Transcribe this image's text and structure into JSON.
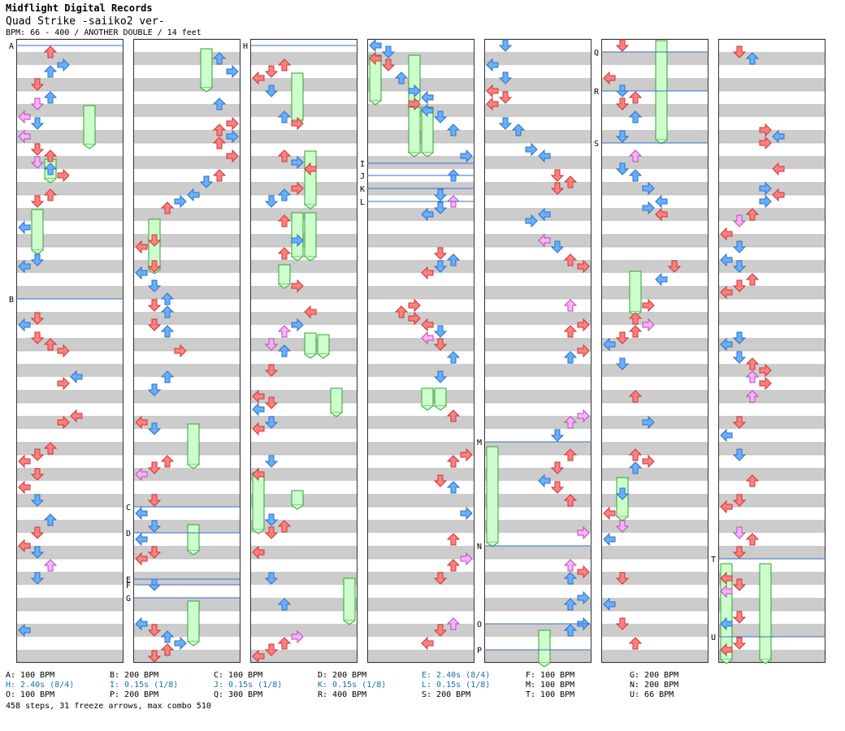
{
  "header": {
    "publisher": "Midflight Digital Records",
    "song_title": "Quad Strike -saiiko2 ver-",
    "info": "BPM: 66 - 400 / ANOTHER DOUBLE / 14 feet"
  },
  "colors": {
    "stripe": "#cccccc",
    "lane_bg": "#ffffff",
    "border": "#333333",
    "marker_line": "#3a6fc8",
    "freeze_fill": "#ccffcc",
    "freeze_stroke": "#33a033",
    "arrow_red": "#ff8080",
    "arrow_red_stroke": "#cc3333",
    "arrow_blue": "#66b0ff",
    "arrow_blue_stroke": "#2f6fbf",
    "arrow_pink": "#ffb0ff",
    "arrow_pink_stroke": "#b04fb0",
    "stop_text": "#1a6fb0"
  },
  "markers": [
    {
      "id": "A",
      "label": "A",
      "col": 0,
      "y": 56
    },
    {
      "id": "B",
      "label": "B",
      "col": 0,
      "y": 368
    },
    {
      "id": "C",
      "label": "C",
      "col": 1,
      "y": 624
    },
    {
      "id": "D",
      "label": "D",
      "col": 1,
      "y": 656
    },
    {
      "id": "E",
      "label": "E",
      "col": 1,
      "y": 713
    },
    {
      "id": "F",
      "label": "F",
      "col": 1,
      "y": 720
    },
    {
      "id": "G",
      "label": "G",
      "col": 1,
      "y": 736
    },
    {
      "id": "H",
      "label": "H",
      "col": 2,
      "y": 56
    },
    {
      "id": "I",
      "label": "I",
      "col": 3,
      "y": 201
    },
    {
      "id": "J",
      "label": "J",
      "col": 3,
      "y": 216
    },
    {
      "id": "K",
      "label": "K",
      "col": 3,
      "y": 232
    },
    {
      "id": "L",
      "label": "L",
      "col": 3,
      "y": 248
    },
    {
      "id": "M",
      "label": "M",
      "col": 4,
      "y": 544
    },
    {
      "id": "N",
      "label": "N",
      "col": 4,
      "y": 672
    },
    {
      "id": "O",
      "label": "O",
      "col": 4,
      "y": 768
    },
    {
      "id": "P",
      "label": "P",
      "col": 4,
      "y": 800
    },
    {
      "id": "Q",
      "label": "Q",
      "col": 5,
      "y": 64
    },
    {
      "id": "R",
      "label": "R",
      "col": 5,
      "y": 112
    },
    {
      "id": "S",
      "label": "S",
      "col": 5,
      "y": 176
    },
    {
      "id": "T",
      "label": "T",
      "col": 6,
      "y": 688
    },
    {
      "id": "U",
      "label": "U",
      "col": 6,
      "y": 784
    }
  ],
  "legend": [
    {
      "text": "A: 100 BPM",
      "kind": "bpm"
    },
    {
      "text": "B: 200 BPM",
      "kind": "bpm"
    },
    {
      "text": "C: 100 BPM",
      "kind": "bpm"
    },
    {
      "text": "D: 200 BPM",
      "kind": "bpm"
    },
    {
      "text": "E: 2.40s (8/4)",
      "kind": "stop"
    },
    {
      "text": "F: 100 BPM",
      "kind": "bpm"
    },
    {
      "text": "G: 200 BPM",
      "kind": "bpm"
    },
    {
      "text": "H: 2.40s (8/4)",
      "kind": "stop"
    },
    {
      "text": "I: 0.15s (1/8)",
      "kind": "stop"
    },
    {
      "text": "C: 100 BPM",
      "kind": "skip"
    },
    {
      "text": "J: 0.15s (1/8)",
      "kind": "stop"
    },
    {
      "text": "K: 0.15s (1/8)",
      "kind": "stop"
    },
    {
      "text": "L: 0.15s (1/8)",
      "kind": "stop"
    },
    {
      "text": "M: 100 BPM",
      "kind": "bpm"
    },
    {
      "text": "N: 200 BPM",
      "kind": "bpm"
    },
    {
      "text": "O: 100 BPM",
      "kind": "bpm"
    },
    {
      "text": "P: 200 BPM",
      "kind": "bpm"
    },
    {
      "text": "Q: 300 BPM",
      "kind": "bpm"
    },
    {
      "text": "R: 400 BPM",
      "kind": "bpm"
    },
    {
      "text": "S: 200 BPM",
      "kind": "bpm"
    },
    {
      "text": "T: 100 BPM",
      "kind": "bpm"
    },
    {
      "text": "U: 66 BPM",
      "kind": "bpm"
    }
  ],
  "footer_summary": "458 steps, 31 freeze arrows, max combo 510"
}
